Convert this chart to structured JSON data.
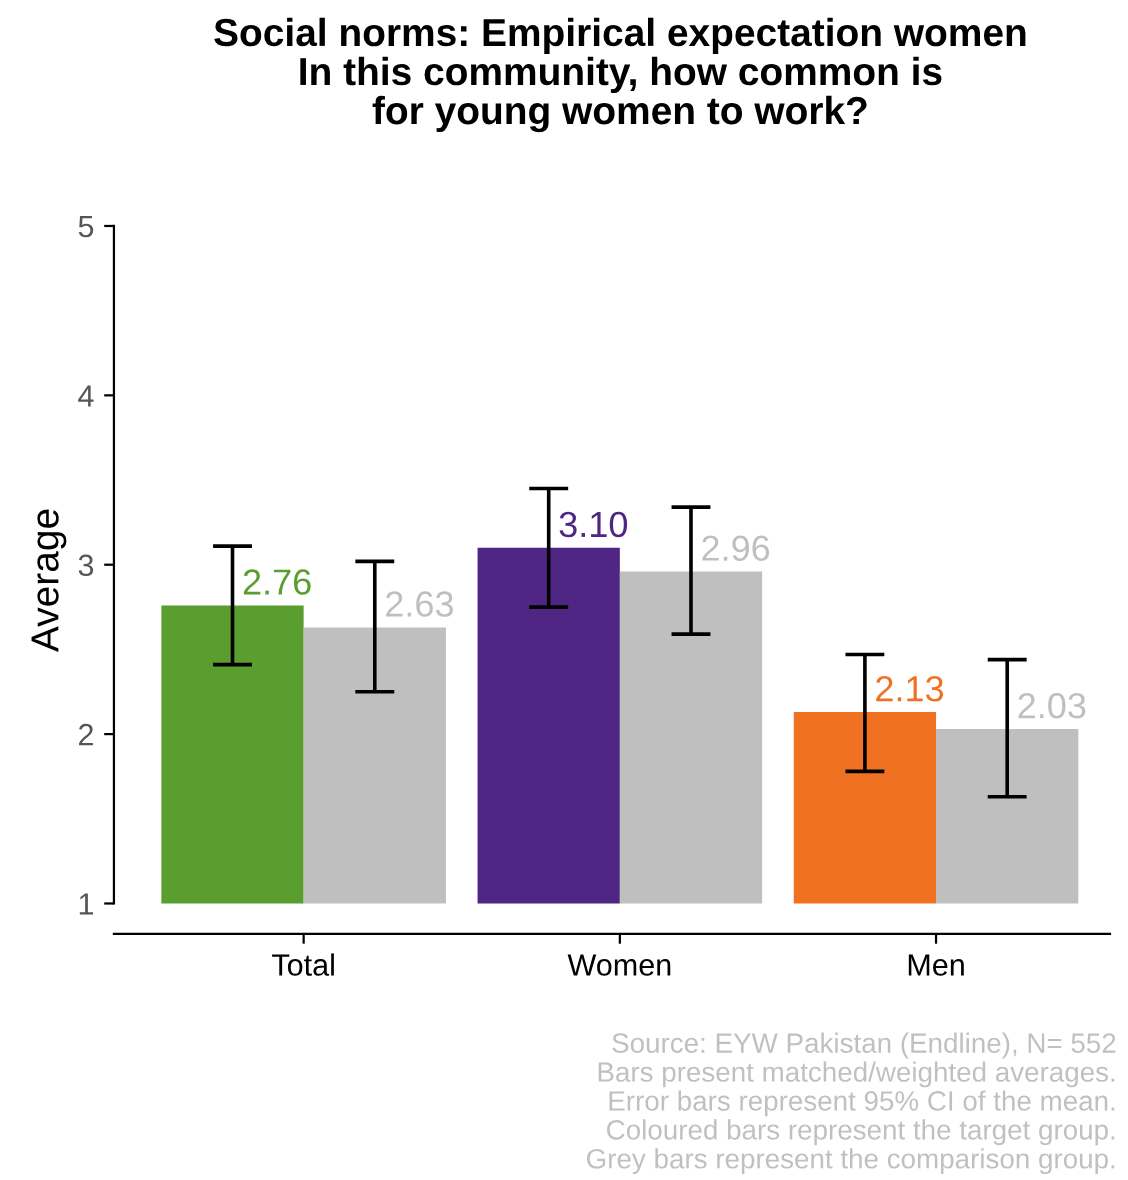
{
  "chart_data": {
    "type": "bar",
    "title": "Social norms: Empirical expectation women\nIn this community, how common is\nfor young women to work?",
    "ylabel": "Average",
    "categories": [
      "Total",
      "Women",
      "Men"
    ],
    "ylim": [
      0.82,
      5
    ],
    "yticks": [
      1,
      2,
      3,
      4,
      5
    ],
    "grid": false,
    "series": [
      {
        "colors": [
          "#5a9e2f",
          "#4f2683",
          "#f07122"
        ],
        "base": [
          1,
          1,
          1
        ],
        "values": [
          1.76,
          2.1,
          1.13
        ],
        "value_labels": [
          "2.76",
          "3.10",
          "2.13"
        ],
        "errors": [
          [
            2.41,
            3.11
          ],
          [
            2.75,
            3.45
          ],
          [
            1.78,
            2.47
          ]
        ]
      },
      {
        "color": "#bfbfbf",
        "base": [
          1,
          1,
          1
        ],
        "values": [
          1.63,
          1.96,
          1.03
        ],
        "value_labels": [
          "2.63",
          "2.96",
          "2.03"
        ],
        "errors": [
          [
            2.25,
            3.02
          ],
          [
            2.59,
            3.34
          ],
          [
            1.63,
            2.44
          ]
        ]
      }
    ],
    "annotations": [
      "Source: EYW Pakistan (Endline), N= 552",
      "Bars present matched/weighted averages.",
      "Error bars represent 95% CI of the mean.",
      "Coloured bars represent the target group.",
      "Grey bars represent the comparison group."
    ]
  }
}
